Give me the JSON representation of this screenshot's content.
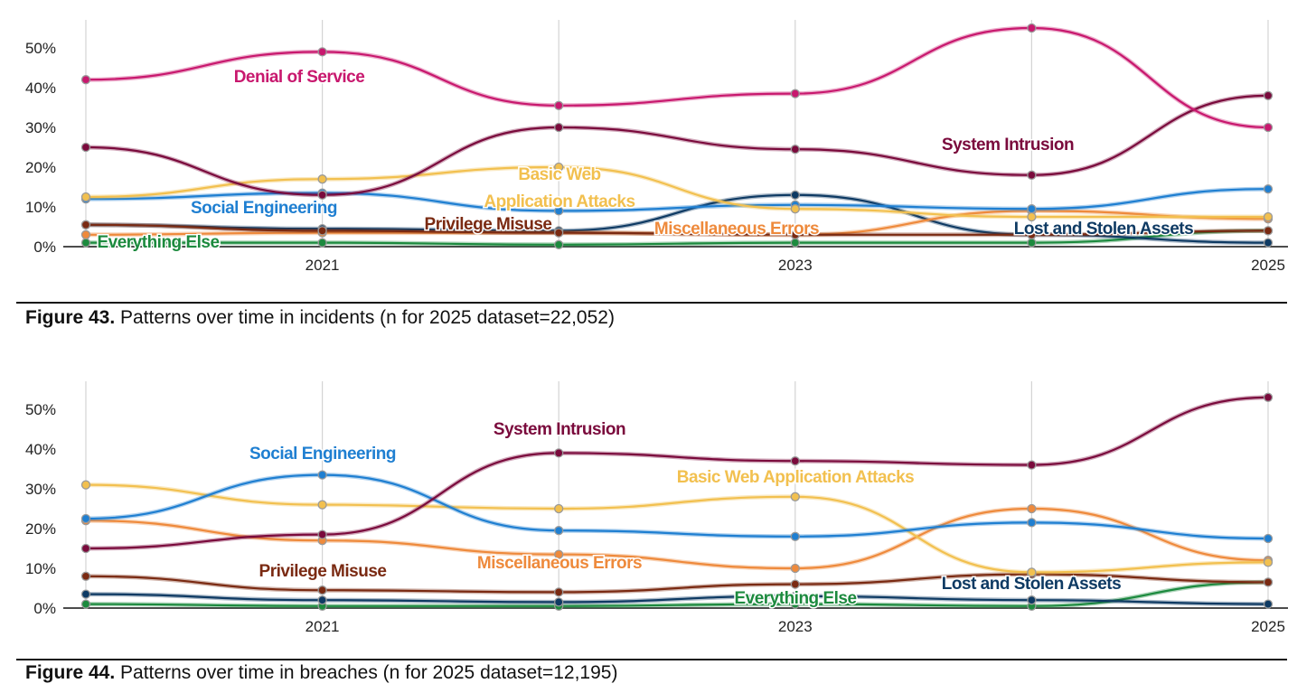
{
  "chart_data": [
    {
      "type": "line",
      "x": [
        2020,
        2021,
        2022,
        2023,
        2024,
        2025
      ],
      "x_tick_labels": [
        "2021",
        "2023",
        "2025"
      ],
      "y_tick_labels": [
        "0%",
        "10%",
        "20%",
        "30%",
        "40%",
        "50%"
      ],
      "ylim": [
        0,
        0.55
      ],
      "grid": "vertical",
      "series": [
        {
          "name": "Denial of Service",
          "color": "#c8186e",
          "values": [
            0.42,
            0.49,
            0.355,
            0.385,
            0.55,
            0.3
          ]
        },
        {
          "name": "System Intrusion",
          "color": "#7a0a3c",
          "values": [
            0.25,
            0.13,
            0.3,
            0.245,
            0.18,
            0.38
          ]
        },
        {
          "name": "Basic Web Application Attacks",
          "color": "#f2c04f",
          "values": [
            0.125,
            0.17,
            0.2,
            0.095,
            0.075,
            0.075
          ]
        },
        {
          "name": "Social Engineering",
          "color": "#1f7fd1",
          "values": [
            0.12,
            0.135,
            0.09,
            0.105,
            0.095,
            0.145
          ]
        },
        {
          "name": "Privilege Misuse",
          "color": "#7a2a12",
          "values": [
            0.055,
            0.04,
            0.035,
            0.03,
            0.03,
            0.04
          ]
        },
        {
          "name": "Miscellaneous Errors",
          "color": "#ee8a3c",
          "values": [
            0.03,
            0.035,
            0.035,
            0.03,
            0.09,
            0.07
          ]
        },
        {
          "name": "Lost and Stolen Assets",
          "color": "#0e3a63",
          "values": [
            0.055,
            0.045,
            0.04,
            0.13,
            0.03,
            0.01
          ]
        },
        {
          "name": "Everything Else",
          "color": "#1c8a3e",
          "values": [
            0.01,
            0.01,
            0.005,
            0.01,
            0.01,
            0.04
          ]
        }
      ],
      "labels": [
        {
          "text": "Denial of Service",
          "series": 0
        },
        {
          "text": "System Intrusion",
          "series": 1
        },
        {
          "text": "Basic Web",
          "series": 2
        },
        {
          "text": "Application Attacks",
          "series": 2
        },
        {
          "text": "Social Engineering",
          "series": 3
        },
        {
          "text": "Privilege Misuse",
          "series": 4
        },
        {
          "text": "Miscellaneous Errors",
          "series": 5
        },
        {
          "text": "Lost and Stolen Assets",
          "series": 6
        },
        {
          "text": "Everything Else",
          "series": 7
        }
      ],
      "caption_bold": "Figure 43.",
      "caption_text": " Patterns over time in incidents (n for 2025 dataset=22,052)"
    },
    {
      "type": "line",
      "x": [
        2020,
        2021,
        2022,
        2023,
        2024,
        2025
      ],
      "x_tick_labels": [
        "2021",
        "2023",
        "2025"
      ],
      "y_tick_labels": [
        "0%",
        "10%",
        "20%",
        "30%",
        "40%",
        "50%"
      ],
      "ylim": [
        0,
        0.55
      ],
      "grid": "vertical",
      "series": [
        {
          "name": "System Intrusion",
          "color": "#7a0a3c",
          "values": [
            0.15,
            0.185,
            0.39,
            0.37,
            0.36,
            0.53
          ]
        },
        {
          "name": "Social Engineering",
          "color": "#1f7fd1",
          "values": [
            0.225,
            0.335,
            0.195,
            0.18,
            0.215,
            0.175
          ]
        },
        {
          "name": "Basic Web Application Attacks",
          "color": "#f2c04f",
          "values": [
            0.31,
            0.26,
            0.25,
            0.28,
            0.09,
            0.115
          ]
        },
        {
          "name": "Miscellaneous Errors",
          "color": "#ee8a3c",
          "values": [
            0.22,
            0.17,
            0.135,
            0.1,
            0.25,
            0.12
          ]
        },
        {
          "name": "Privilege Misuse",
          "color": "#7a2a12",
          "values": [
            0.08,
            0.045,
            0.04,
            0.06,
            0.085,
            0.065
          ]
        },
        {
          "name": "Lost and Stolen Assets",
          "color": "#0e3a63",
          "values": [
            0.035,
            0.02,
            0.015,
            0.03,
            0.02,
            0.01
          ]
        },
        {
          "name": "Everything Else",
          "color": "#1c8a3e",
          "values": [
            0.01,
            0.005,
            0.005,
            0.01,
            0.005,
            0.065
          ]
        }
      ],
      "labels": [
        {
          "text": "System Intrusion",
          "series": 0
        },
        {
          "text": "Social Engineering",
          "series": 1
        },
        {
          "text": "Basic Web Application Attacks",
          "series": 2
        },
        {
          "text": "Miscellaneous Errors",
          "series": 3
        },
        {
          "text": "Privilege Misuse",
          "series": 4
        },
        {
          "text": "Lost and Stolen Assets",
          "series": 5
        },
        {
          "text": "Everything Else",
          "series": 6
        }
      ],
      "caption_bold": "Figure 44.",
      "caption_text": " Patterns over time in breaches (n for 2025 dataset=12,195)"
    }
  ]
}
